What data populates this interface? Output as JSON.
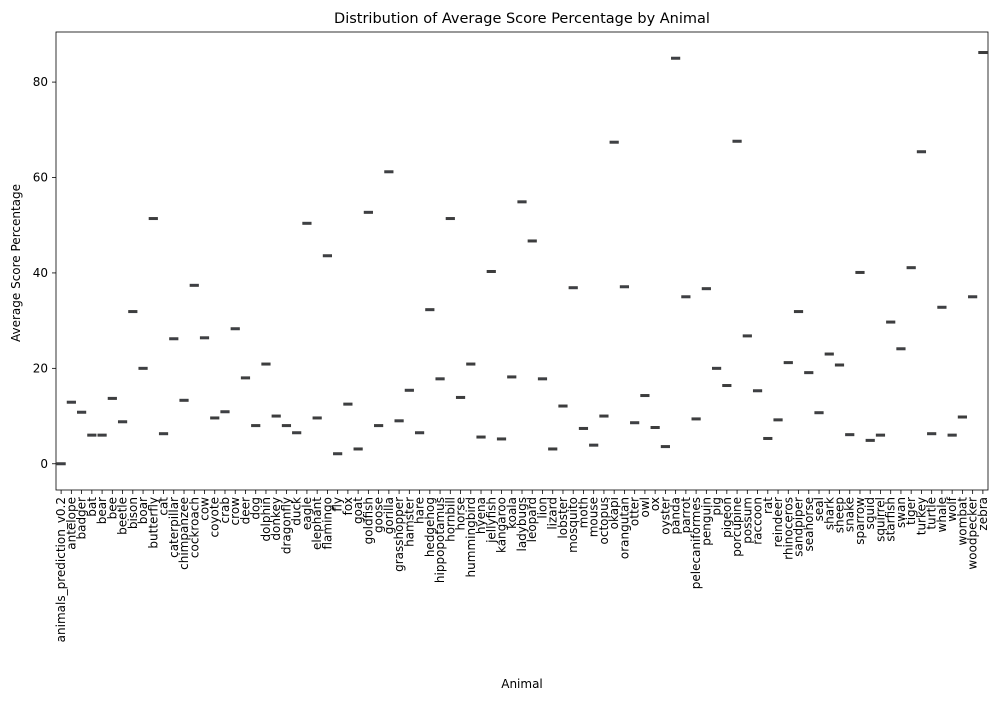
{
  "chart_data": {
    "type": "box",
    "title": "Distribution of Average Score Percentage by Animal",
    "xlabel": "Animal",
    "ylabel": "Average Score Percentage",
    "ylim": [
      -5.5,
      90.5
    ],
    "yticks": [
      0,
      20,
      40,
      60,
      80
    ],
    "grid": false,
    "categories": [
      "animals_prediction_v0.2",
      "antelope",
      "badger",
      "bat",
      "bear",
      "bee",
      "beetle",
      "bison",
      "boar",
      "butterfly",
      "cat",
      "caterpillar",
      "chimpanzee",
      "cockroach",
      "cow",
      "coyote",
      "crab",
      "crow",
      "deer",
      "dog",
      "dolphin",
      "donkey",
      "dragonfly",
      "duck",
      "eagle",
      "elephant",
      "flamingo",
      "fly",
      "fox",
      "goat",
      "goldfish",
      "goose",
      "gorilla",
      "grasshopper",
      "hamster",
      "hare",
      "hedgehog",
      "hippopotamus",
      "hornbill",
      "horse",
      "hummingbird",
      "hyena",
      "jellyfish",
      "kangaroo",
      "koala",
      "ladybugs",
      "leopard",
      "lion",
      "lizard",
      "lobster",
      "mosquito",
      "moth",
      "mouse",
      "octopus",
      "okapi",
      "orangutan",
      "otter",
      "owl",
      "ox",
      "oyster",
      "panda",
      "parrot",
      "pelecaniformes",
      "penguin",
      "pig",
      "pigeon",
      "porcupine",
      "possum",
      "raccoon",
      "rat",
      "reindeer",
      "rhinoceros",
      "sandpiper",
      "seahorse",
      "seal",
      "shark",
      "sheep",
      "snake",
      "sparrow",
      "squid",
      "squirrel",
      "starfish",
      "swan",
      "tiger",
      "turkey",
      "turtle",
      "whale",
      "wolf",
      "wombat",
      "woodpecker",
      "zebra"
    ],
    "values": [
      0,
      12.9,
      10.8,
      6.0,
      6.0,
      13.7,
      8.8,
      31.9,
      20.0,
      51.4,
      6.3,
      26.2,
      13.3,
      37.4,
      26.4,
      9.6,
      10.9,
      28.3,
      18.0,
      8.0,
      20.9,
      10.0,
      8.0,
      6.5,
      50.4,
      9.6,
      43.6,
      2.1,
      12.5,
      3.1,
      52.7,
      8.0,
      61.2,
      9.0,
      15.4,
      6.5,
      32.3,
      17.8,
      51.4,
      13.9,
      20.9,
      5.6,
      40.3,
      5.2,
      18.2,
      54.9,
      46.7,
      17.8,
      3.1,
      12.1,
      36.9,
      7.4,
      3.9,
      10.0,
      67.4,
      37.1,
      8.6,
      14.3,
      7.6,
      3.6,
      85.0,
      35.0,
      9.4,
      36.7,
      20.0,
      16.4,
      67.6,
      26.8,
      15.3,
      5.3,
      9.2,
      21.2,
      31.9,
      19.1,
      10.7,
      23.0,
      20.7,
      6.1,
      40.1,
      4.9,
      6.0,
      29.7,
      24.1,
      41.1,
      65.4,
      6.3,
      32.8,
      6.0,
      9.8,
      35.0,
      86.2
    ],
    "box_color": "#4c72b0"
  }
}
